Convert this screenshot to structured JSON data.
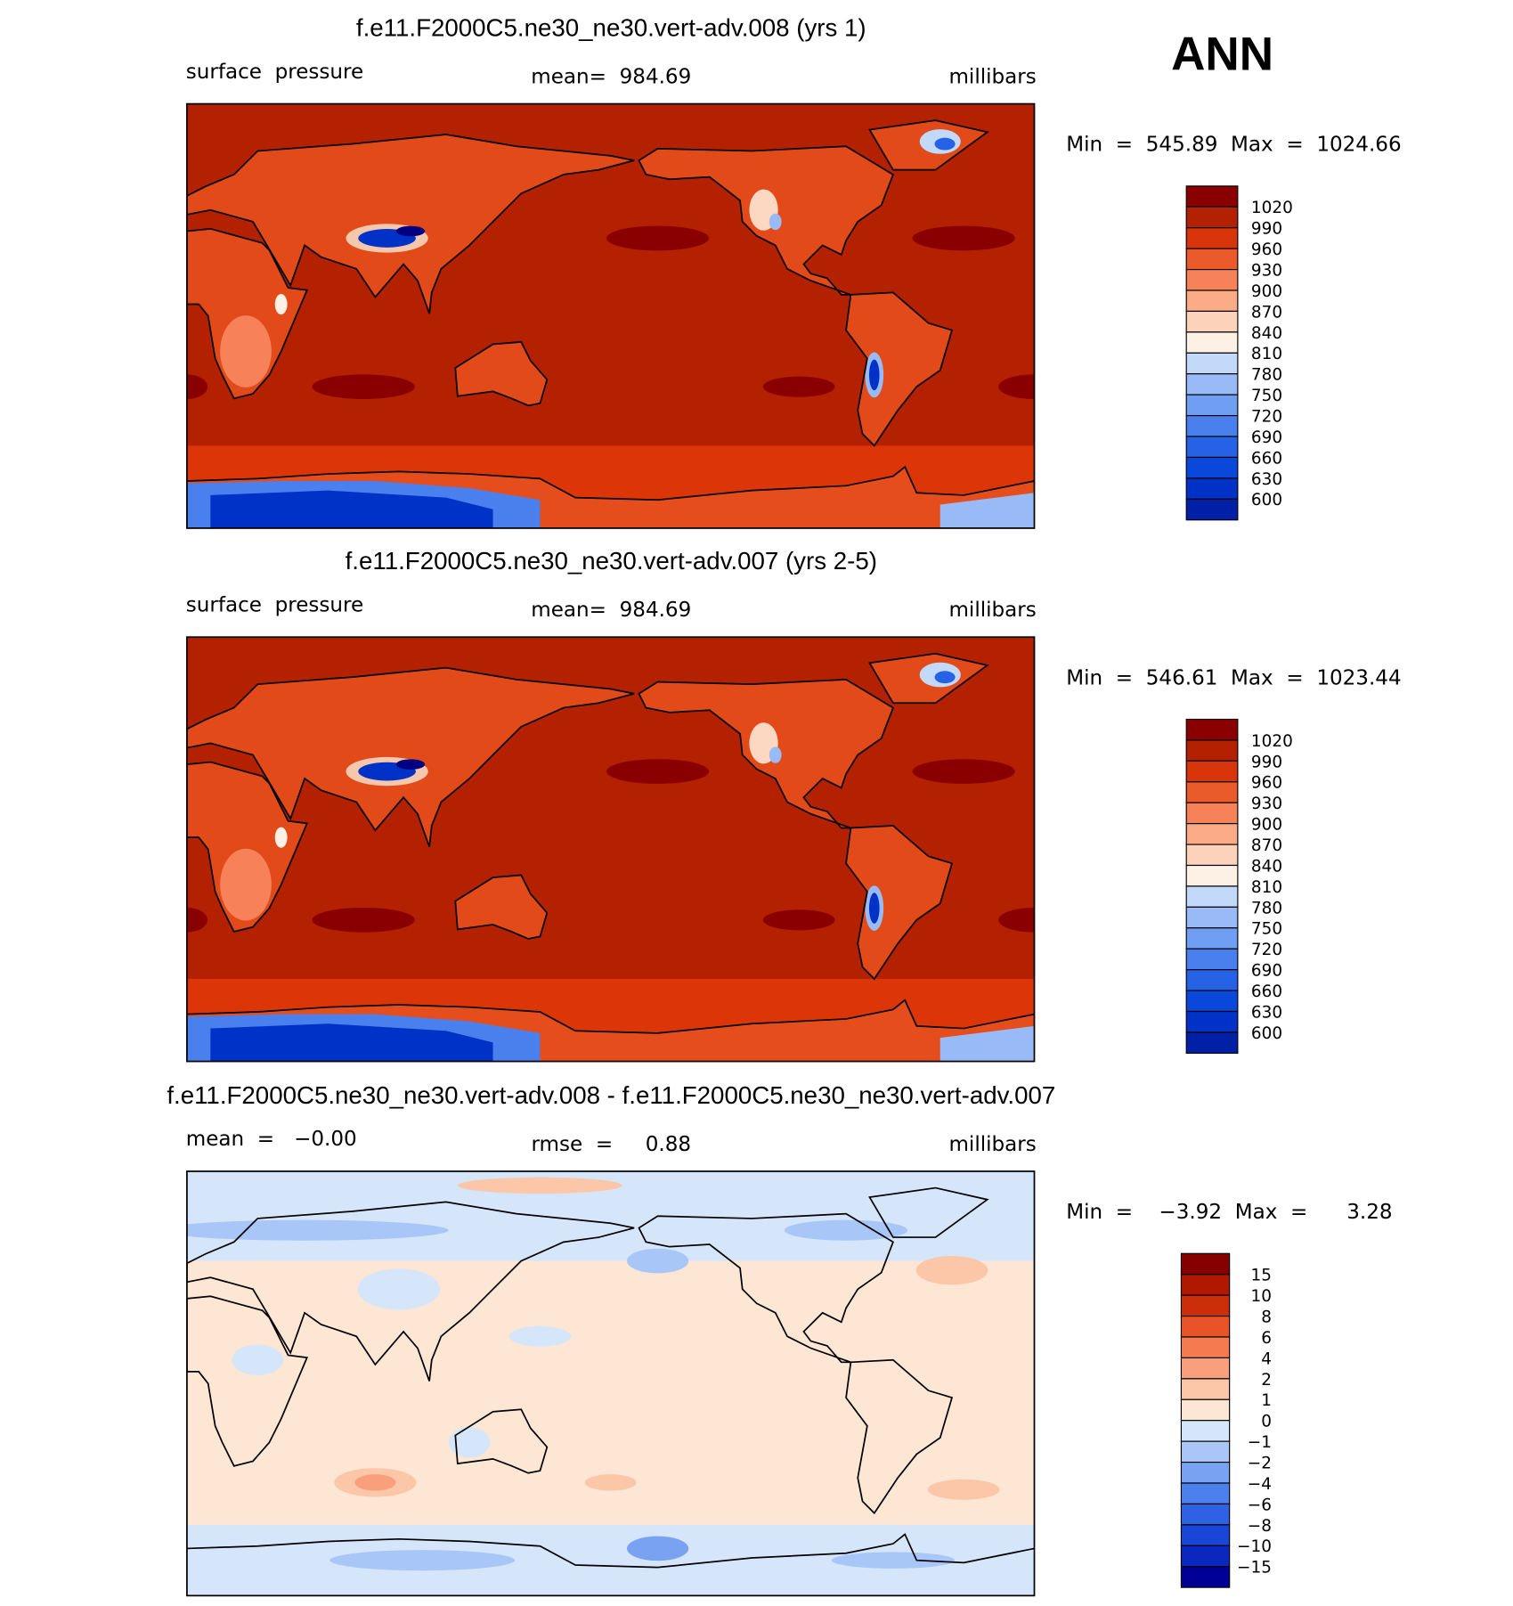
{
  "header": {
    "title": "ANN"
  },
  "panels": [
    {
      "title": "f.e11.F2000C5.ne30_ne30.vert-adv.008 (yrs 1)",
      "left": "surface  pressure",
      "center": "mean=  984.69",
      "right": "millibars",
      "minmax": "Min  =  545.89  Max  =  1024.66",
      "colorbar_labels": [
        "1020",
        "990",
        "960",
        "930",
        "900",
        "870",
        "840",
        "810",
        "780",
        "750",
        "720",
        "690",
        "660",
        "630",
        "600"
      ]
    },
    {
      "title": "f.e11.F2000C5.ne30_ne30.vert-adv.007 (yrs 2-5)",
      "left": "surface  pressure",
      "center": "mean=  984.69",
      "right": "millibars",
      "minmax": "Min  =  546.61  Max  =  1023.44",
      "colorbar_labels": [
        "1020",
        "990",
        "960",
        "930",
        "900",
        "870",
        "840",
        "810",
        "780",
        "750",
        "720",
        "690",
        "660",
        "630",
        "600"
      ]
    },
    {
      "title": "f.e11.F2000C5.ne30_ne30.vert-adv.008 - f.e11.F2000C5.ne30_ne30.vert-adv.007",
      "left": "mean  =   −0.00",
      "center": "rmse  =     0.88",
      "right": "millibars",
      "minmax": "Min  =    −3.92  Max  =      3.28",
      "colorbar_labels": [
        "15",
        "10",
        "8",
        "6",
        "4",
        "2",
        "1",
        "0",
        "−1",
        "−2",
        "−4",
        "−6",
        "−8",
        "−10",
        "−15"
      ]
    }
  ]
}
